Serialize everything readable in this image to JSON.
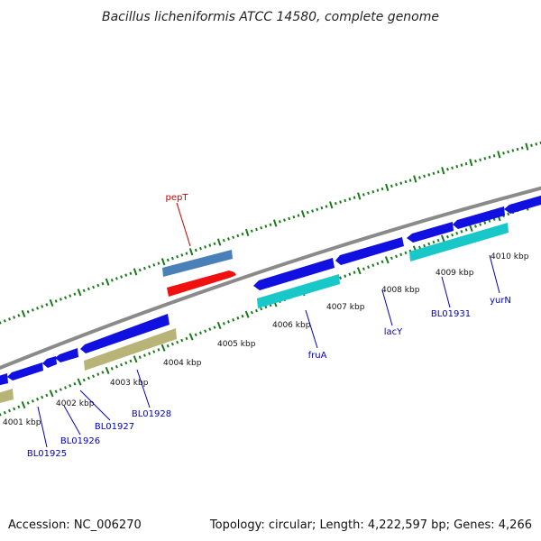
{
  "title": "Bacillus licheniformis ATCC 14580, complete genome",
  "footer": {
    "accession": "Accession: NC_006270",
    "summary": "Topology: circular; Length: 4,222,597 bp; Genes: 4,266"
  },
  "colors": {
    "backbone": "#8a8a8a",
    "tick": "#1a7a1a",
    "blue_gene": "#1010e0",
    "cyan_gene": "#18c8c8",
    "olive_gene": "#b8b478",
    "steel_gene": "#4a80b8",
    "red_gene": "#f01010",
    "label_blue": "#0000bb",
    "label_red": "#cc0000"
  },
  "scale": {
    "ticks": [
      {
        "label": "4001 kbp"
      },
      {
        "label": "4002 kbp"
      },
      {
        "label": "4003 kbp"
      },
      {
        "label": "4004 kbp"
      },
      {
        "label": "4005 kbp"
      },
      {
        "label": "4006 kbp"
      },
      {
        "label": "4007 kbp"
      },
      {
        "label": "4008 kbp"
      },
      {
        "label": "4009 kbp"
      },
      {
        "label": "4010 kbp"
      }
    ]
  },
  "gene_labels": [
    {
      "name": "pepT",
      "color": "red"
    },
    {
      "name": "BL01925",
      "color": "blue"
    },
    {
      "name": "BL01926",
      "color": "blue"
    },
    {
      "name": "BL01927",
      "color": "blue"
    },
    {
      "name": "BL01928",
      "color": "blue"
    },
    {
      "name": "fruA",
      "color": "blue"
    },
    {
      "name": "lacY",
      "color": "blue"
    },
    {
      "name": "BL01931",
      "color": "blue"
    },
    {
      "name": "yurN",
      "color": "blue"
    }
  ]
}
